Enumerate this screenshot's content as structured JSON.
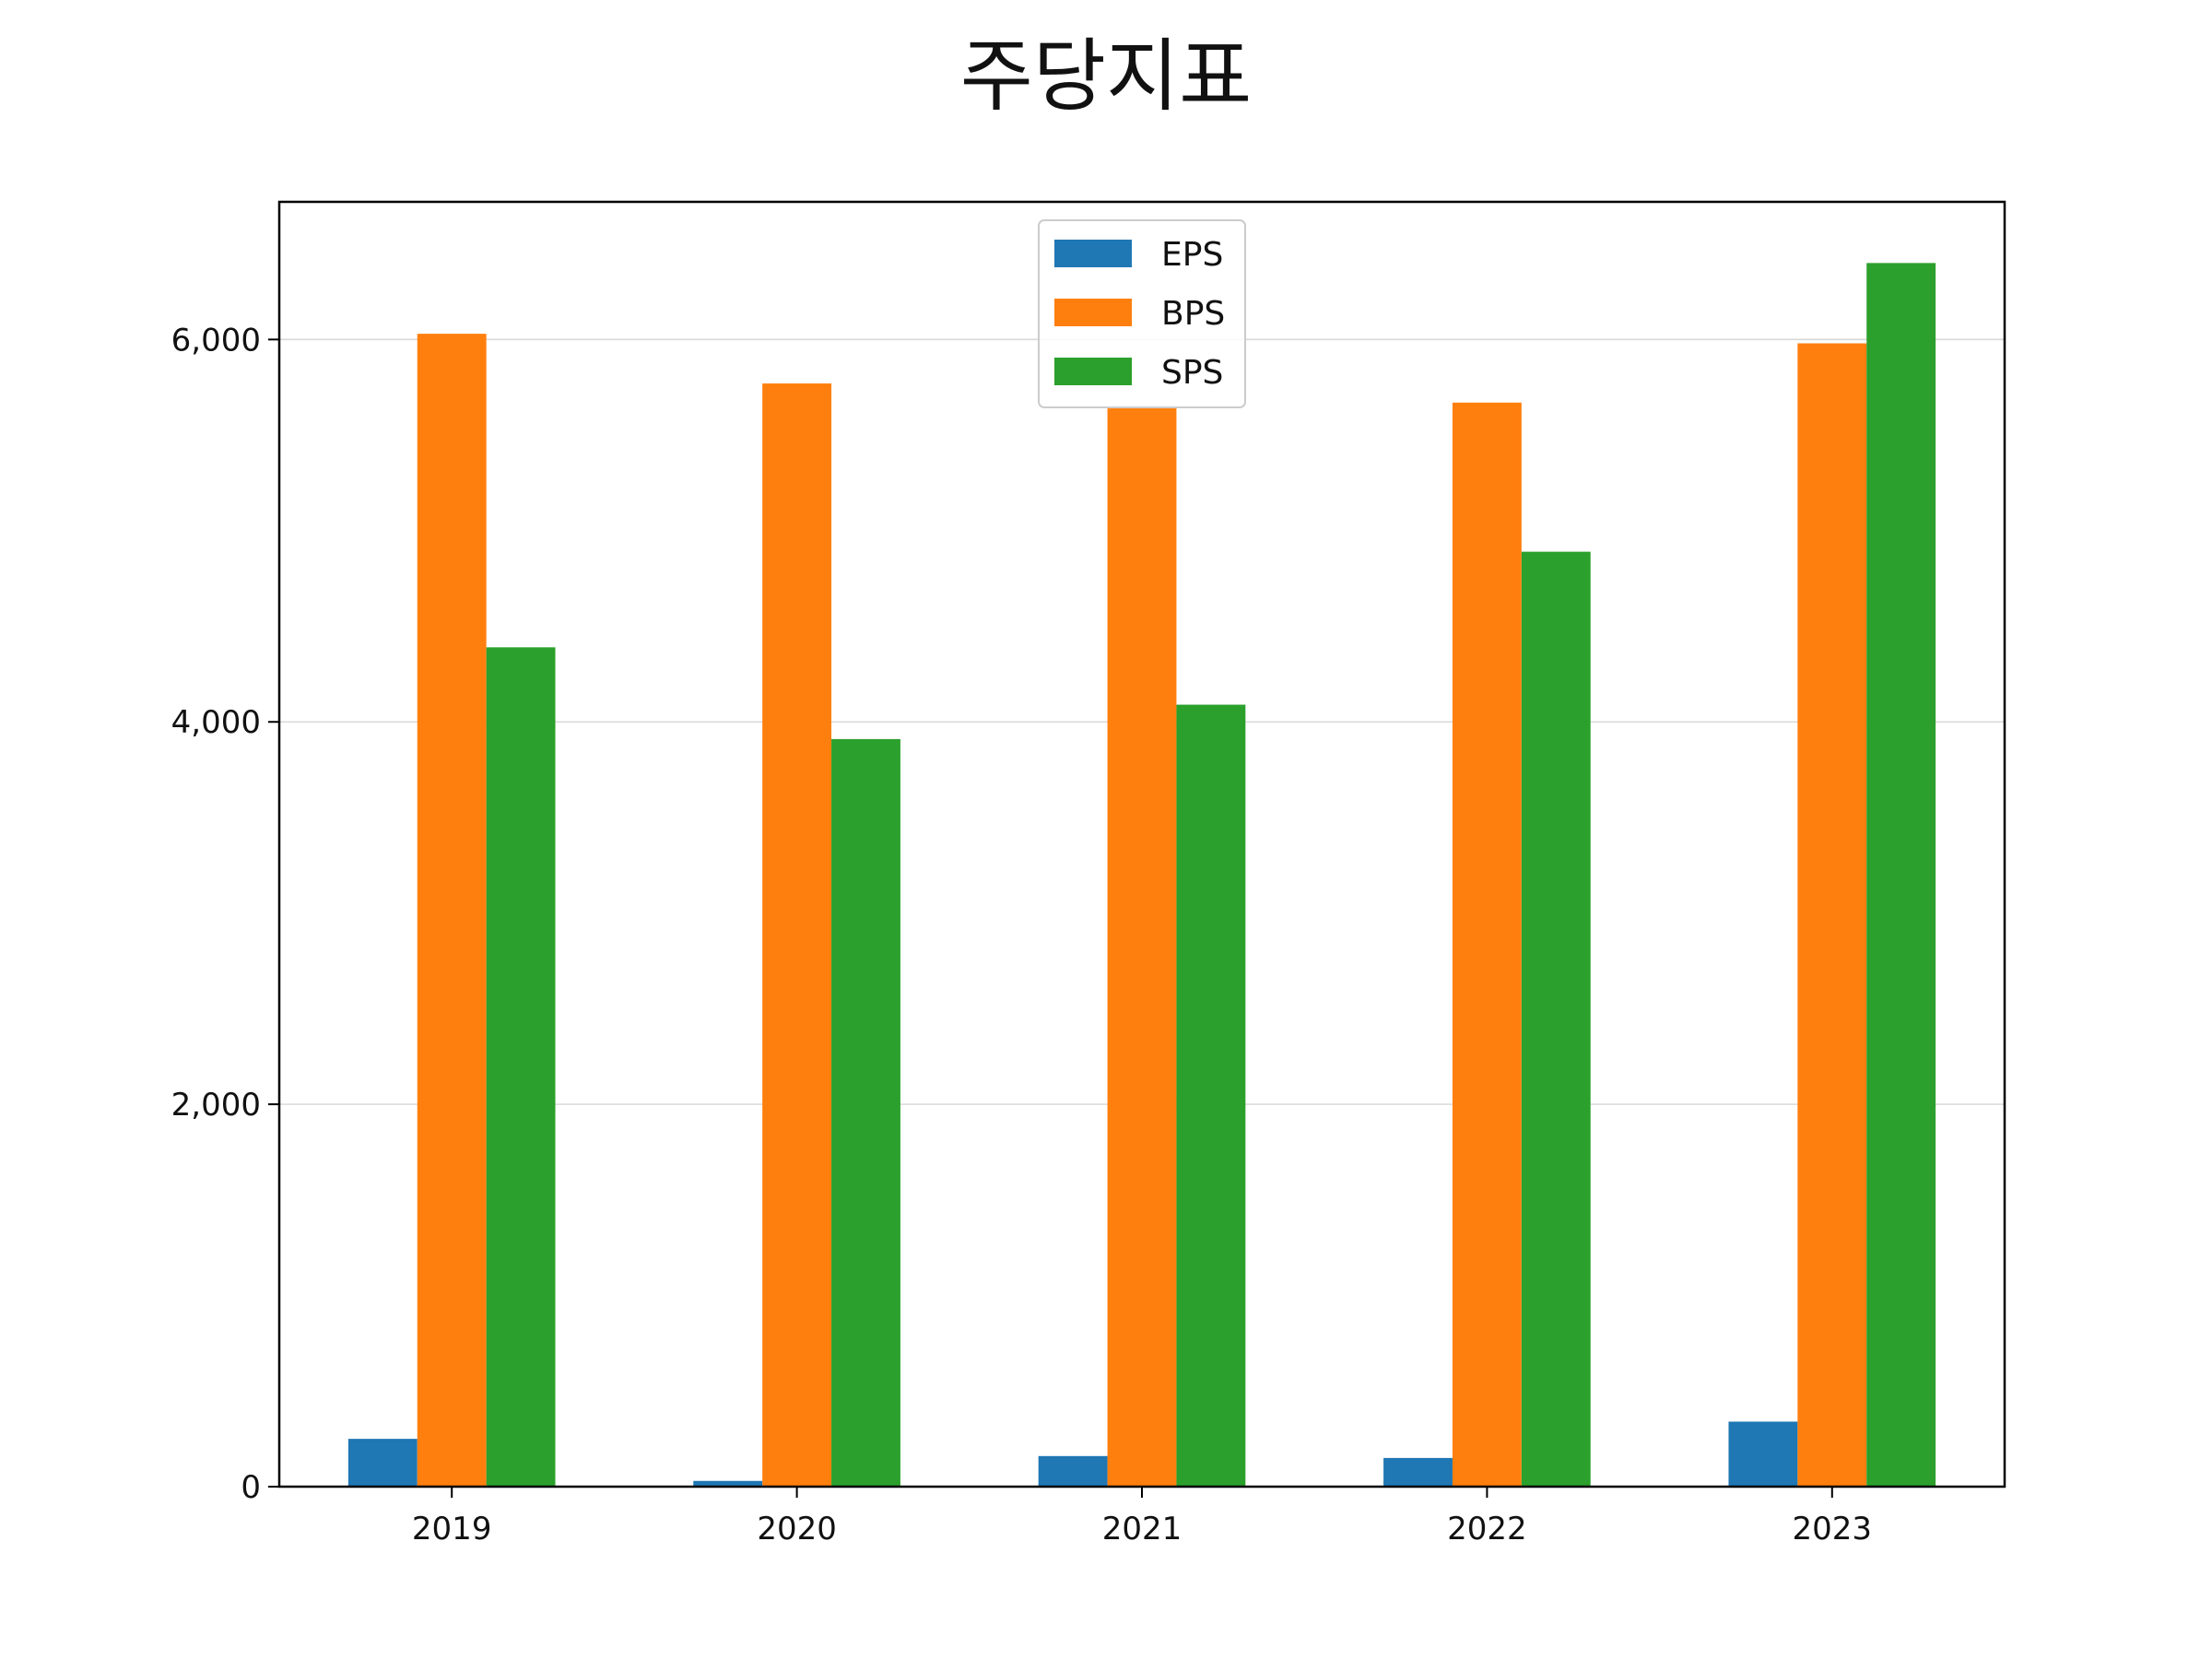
{
  "chart_data": {
    "type": "bar",
    "title": "주당지표",
    "xlabel": "",
    "ylabel": "",
    "categories": [
      "2019",
      "2020",
      "2021",
      "2022",
      "2023"
    ],
    "series": [
      {
        "name": "EPS",
        "color": "#1f77b4",
        "values": [
          250,
          30,
          160,
          150,
          340
        ]
      },
      {
        "name": "BPS",
        "color": "#ff7f0e",
        "values": [
          6030,
          5770,
          5640,
          5670,
          5980
        ]
      },
      {
        "name": "SPS",
        "color": "#2ca02c",
        "values": [
          4390,
          3910,
          4090,
          4890,
          6400
        ]
      }
    ],
    "ylim": [
      0,
      6720
    ],
    "yticks": [
      0,
      2000,
      4000,
      6000
    ],
    "ytick_labels": [
      "0",
      "2,000",
      "4,000",
      "6,000"
    ],
    "grid": "y",
    "legend_position": "top-center"
  }
}
